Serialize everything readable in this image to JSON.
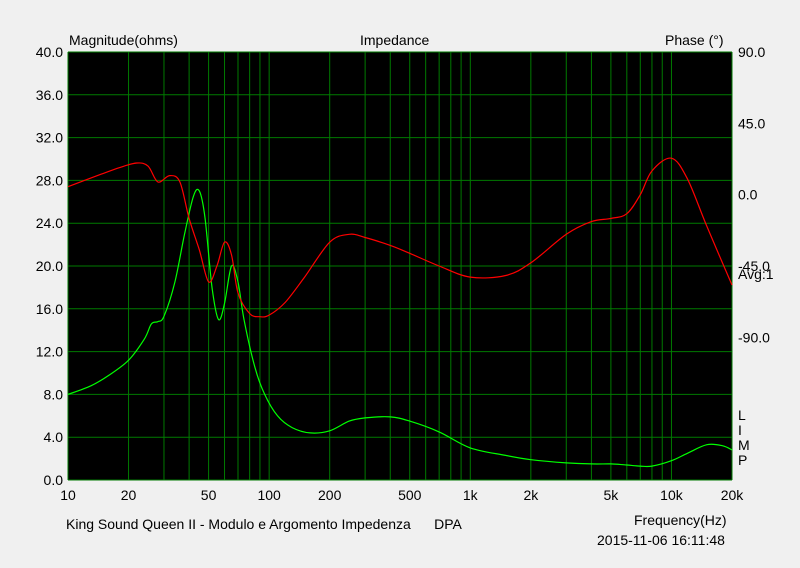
{
  "chart_data": {
    "type": "line",
    "title": "Impedance",
    "left_axis_label": "Magnitude(ohms)",
    "right_axis_label": "Phase (°)",
    "xlabel": "Frequency(Hz)",
    "x_scale": "log",
    "xlim": [
      10,
      20000
    ],
    "ylim": [
      0,
      40
    ],
    "y2lim": [
      -180,
      90
    ],
    "grid": true,
    "x_ticks": [
      10,
      20,
      50,
      100,
      200,
      500,
      1000,
      2000,
      5000,
      10000,
      20000
    ],
    "x_tick_labels": [
      "10",
      "20",
      "50",
      "100",
      "200",
      "500",
      "1k",
      "2k",
      "5k",
      "10k",
      "20k"
    ],
    "y_ticks": [
      0,
      4,
      8,
      12,
      16,
      20,
      24,
      28,
      32,
      36,
      40
    ],
    "y_tick_labels": [
      "0.0",
      "4.0",
      "8.0",
      "12.0",
      "16.0",
      "20.0",
      "24.0",
      "28.0",
      "32.0",
      "36.0",
      "40.0"
    ],
    "y2_ticks": [
      90,
      45,
      0,
      -45,
      -90
    ],
    "y2_tick_labels": [
      "90.0",
      "45.0",
      "0.0",
      "-45.0",
      "-90.0"
    ],
    "avg_label": "Avg:1",
    "limp_label": [
      "L",
      "I",
      "M",
      "P"
    ],
    "footer_left": "King Sound Queen II - Modulo e Argomento Impedenza      DPA",
    "timestamp": "2015-11-06 16:11:48",
    "colors": {
      "background": "#000000",
      "grid": "#007a00",
      "magnitude": "#00ff00",
      "phase": "#ff0000",
      "frame": "#f0f0f0"
    },
    "series": [
      {
        "axis": "left",
        "color": "#00ff00",
        "x": [
          10,
          13,
          16,
          20,
          24,
          26,
          28,
          30,
          34,
          38,
          42,
          45,
          48,
          52,
          56,
          60,
          65,
          70,
          75,
          85,
          95,
          110,
          130,
          160,
          200,
          250,
          300,
          400,
          500,
          700,
          1000,
          1500,
          2000,
          3000,
          4000,
          5000,
          6000,
          7000,
          8000,
          10000,
          12000,
          15000,
          18000,
          20000
        ],
        "y": [
          8.0,
          8.8,
          9.8,
          11.2,
          13.2,
          14.6,
          14.8,
          15.3,
          18.5,
          23.0,
          26.5,
          27.0,
          24.5,
          18.0,
          15.0,
          16.5,
          20.0,
          18.5,
          15.0,
          10.5,
          8.0,
          6.0,
          4.9,
          4.4,
          4.6,
          5.5,
          5.8,
          5.9,
          5.5,
          4.5,
          3.0,
          2.3,
          1.9,
          1.6,
          1.5,
          1.5,
          1.4,
          1.3,
          1.3,
          1.8,
          2.5,
          3.3,
          3.2,
          2.8
        ]
      },
      {
        "axis": "right",
        "color": "#ff0000",
        "x": [
          10,
          14,
          18,
          22,
          25,
          28,
          32,
          36,
          40,
          45,
          50,
          55,
          60,
          65,
          70,
          80,
          90,
          100,
          120,
          150,
          200,
          250,
          300,
          400,
          500,
          700,
          1000,
          1500,
          2000,
          3000,
          4000,
          5000,
          6000,
          7000,
          8000,
          10000,
          12000,
          15000,
          20000
        ],
        "y": [
          5,
          12,
          17,
          20,
          18,
          8,
          12,
          8,
          -15,
          -35,
          -55,
          -45,
          -30,
          -38,
          -62,
          -75,
          -77,
          -76,
          -68,
          -52,
          -30,
          -25,
          -27,
          -32,
          -37,
          -45,
          -52,
          -51,
          -43,
          -25,
          -17,
          -15,
          -12,
          0,
          15,
          23,
          10,
          -20,
          -57
        ]
      }
    ]
  }
}
